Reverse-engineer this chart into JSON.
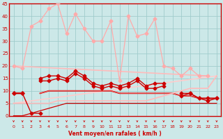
{
  "xlabel": "Vent moyen/en rafales ( km/h )",
  "xlim": [
    -0.5,
    23.5
  ],
  "ylim": [
    0,
    45
  ],
  "yticks": [
    0,
    5,
    10,
    15,
    20,
    25,
    30,
    35,
    40,
    45
  ],
  "xticks": [
    0,
    1,
    2,
    3,
    4,
    5,
    6,
    7,
    8,
    9,
    10,
    11,
    12,
    13,
    14,
    15,
    16,
    17,
    18,
    19,
    20,
    21,
    22,
    23
  ],
  "bg_color": "#cce8e8",
  "grid_color": "#a0cccc",
  "series": [
    {
      "name": "jagged_light_pink_marker",
      "x": [
        0,
        1,
        2,
        3,
        4,
        5,
        6,
        7,
        8,
        9,
        10,
        11,
        12,
        13,
        14,
        15,
        16,
        17,
        18,
        19,
        20,
        21,
        22
      ],
      "y": [
        20,
        19,
        36,
        38,
        43,
        45,
        33,
        41,
        35,
        30,
        30,
        38,
        14,
        40,
        32,
        33,
        39,
        20,
        19,
        16,
        19,
        16,
        16
      ],
      "color": "#ffaaaa",
      "lw": 0.9,
      "marker": "D",
      "ms": 2.5
    },
    {
      "name": "straight_diagonal_light_pink",
      "x": [
        0,
        22
      ],
      "y": [
        20,
        16
      ],
      "color": "#ffbbbb",
      "lw": 1.2,
      "marker": null,
      "ms": 0
    },
    {
      "name": "lower_diagonal_rising_light",
      "x": [
        0,
        23
      ],
      "y": [
        5,
        16
      ],
      "color": "#ffcccc",
      "lw": 1.2,
      "marker": null,
      "ms": 0
    },
    {
      "name": "dark_red_upper_jagged_marker",
      "x": [
        0,
        1,
        2,
        3,
        4,
        5,
        6,
        7,
        8,
        9,
        10,
        11,
        12,
        13,
        14,
        15,
        16,
        17,
        18,
        19,
        20,
        21,
        22,
        23
      ],
      "y": [
        9,
        9,
        null,
        15,
        16,
        16,
        15,
        18,
        16,
        13,
        12,
        13,
        12,
        13,
        15,
        12,
        13,
        13,
        null,
        9,
        9,
        7,
        7,
        7
      ],
      "color": "#cc0000",
      "lw": 1.0,
      "marker": "D",
      "ms": 2.5
    },
    {
      "name": "dark_red_lower_jagged_marker",
      "x": [
        0,
        1,
        2,
        3,
        4,
        5,
        6,
        7,
        8,
        9,
        10,
        11,
        12,
        13,
        14,
        15,
        16,
        17,
        18,
        19,
        20,
        21,
        22,
        23
      ],
      "y": [
        9,
        9,
        null,
        14,
        14,
        15,
        14,
        17,
        15,
        12,
        11,
        12,
        11,
        12,
        14,
        11,
        11,
        12,
        null,
        8,
        9,
        7,
        6,
        7
      ],
      "color": "#cc0000",
      "lw": 1.0,
      "marker": "D",
      "ms": 2.5
    },
    {
      "name": "dark_red_bottom_drop_marker",
      "x": [
        0,
        1,
        2,
        3
      ],
      "y": [
        9,
        9,
        1,
        1
      ],
      "color": "#cc0000",
      "lw": 1.0,
      "marker": "D",
      "ms": 2.5
    },
    {
      "name": "dark_red_nearly_flat",
      "x": [
        0,
        1,
        2,
        3,
        4,
        5,
        6,
        7,
        8,
        9,
        10,
        11,
        12,
        13,
        14,
        15,
        16,
        17,
        18,
        19,
        20,
        21,
        22,
        23
      ],
      "y": [
        9,
        9,
        null,
        9,
        10,
        10,
        10,
        10,
        10,
        10,
        10,
        10,
        9,
        9,
        9,
        9,
        9,
        9,
        9,
        8,
        8,
        7,
        7,
        7
      ],
      "color": "#cc0000",
      "lw": 1.3,
      "marker": null,
      "ms": 0
    },
    {
      "name": "dark_red_rising_from_zero",
      "x": [
        0,
        1,
        2,
        3,
        4,
        5,
        6,
        7,
        8,
        9,
        10,
        11,
        12,
        13,
        14,
        15,
        16,
        17,
        18,
        19,
        20,
        21,
        22,
        23
      ],
      "y": [
        0,
        0,
        1,
        2,
        3,
        4,
        5,
        5,
        5,
        5,
        5,
        5,
        5,
        5,
        5,
        5,
        5,
        5,
        5,
        5,
        5,
        5,
        5,
        5
      ],
      "color": "#cc0000",
      "lw": 0.9,
      "marker": null,
      "ms": 0
    },
    {
      "name": "medium_red_flat_line",
      "x": [
        0,
        1,
        2,
        3,
        4,
        5,
        6,
        7,
        8,
        9,
        10,
        11,
        12,
        13,
        14,
        15,
        16,
        17,
        18,
        19,
        20,
        21,
        22,
        23
      ],
      "y": [
        9,
        9,
        null,
        9,
        10,
        10,
        10,
        10,
        10,
        10,
        10,
        10,
        9,
        9,
        9,
        9,
        9,
        9,
        9,
        8,
        8,
        7,
        7,
        7
      ],
      "color": "#ee5555",
      "lw": 0.8,
      "marker": null,
      "ms": 0
    },
    {
      "name": "light_pink_rising_line",
      "x": [
        0,
        1,
        2,
        3,
        4,
        5,
        6,
        7,
        8,
        9,
        10,
        11,
        12,
        13,
        14,
        15,
        16,
        17,
        18,
        19,
        20,
        21,
        22,
        23
      ],
      "y": [
        5,
        5,
        5,
        5,
        5,
        6,
        6,
        6,
        6,
        6,
        6,
        6,
        6,
        6,
        6,
        6,
        7,
        8,
        9,
        10,
        11,
        11,
        11,
        16
      ],
      "color": "#ffbbbb",
      "lw": 1.2,
      "marker": null,
      "ms": 0
    }
  ],
  "arrow_color": "#cc0000",
  "tick_color": "#cc0000",
  "label_color": "#cc0000",
  "axis_color": "#cc0000"
}
